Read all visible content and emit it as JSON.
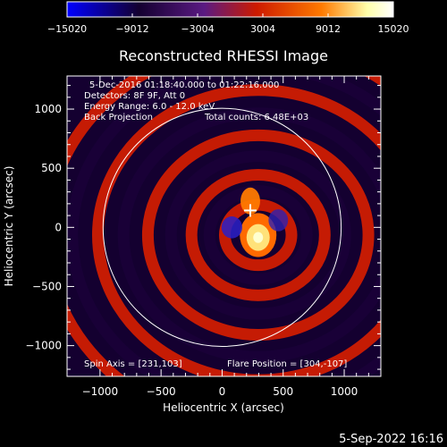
{
  "chart_data": {
    "type": "heatmap",
    "title": "Reconstructed RHESSI Image",
    "xlabel": "Heliocentric X (arcsec)",
    "ylabel": "Heliocentric Y (arcsec)",
    "xlim": [
      -1270,
      1300
    ],
    "ylim": [
      -1260,
      1280
    ],
    "x_ticks": [
      -1000,
      -500,
      0,
      500,
      1000
    ],
    "y_ticks": [
      -1000,
      -500,
      0,
      500,
      1000
    ],
    "x_tick_labels": [
      "−1000",
      "−500",
      "0",
      "500",
      "1000"
    ],
    "y_tick_labels": [
      "−1000",
      "−500",
      "0",
      "500",
      "1000"
    ],
    "colorbar": {
      "range": [
        -15020,
        15020
      ],
      "ticks": [
        -15020,
        -9012,
        -3004,
        3004,
        9012,
        15020
      ],
      "tick_labels": [
        "−15020",
        "−9012",
        "−3004",
        "3004",
        "9012",
        "15020"
      ],
      "colors": [
        "#0000ff",
        "#140030",
        "#5a1a82",
        "#cc1a00",
        "#ff7a00",
        "#ffffaa",
        "#ffffff"
      ]
    },
    "annotations": {
      "date": "5-Dec-2016 01:18:40.000 to 01:22:16.000",
      "detectors": "Detectors: 8F 9F, Att 0",
      "energy": "Energy Range: 6.0 - 12.0 keV",
      "method": "Back Projection",
      "counts": "Total counts: 6.48E+03",
      "spin_axis": "Spin Axis = [231,103]",
      "flare_position": "Flare Position = [304,-107]"
    },
    "solar_radius_arcsec": 975,
    "spin_axis": [
      231,
      103
    ],
    "flare_position": [
      304,
      -107
    ],
    "source_peak": [
      295,
      -65
    ],
    "marker_position": [
      231,
      143
    ],
    "grid": false
  },
  "footer": {
    "date": "5-Sep-2022 16:16"
  }
}
